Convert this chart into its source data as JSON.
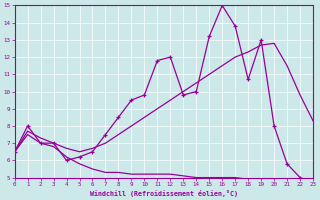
{
  "xlabel": "Windchill (Refroidissement éolien,°C)",
  "ylabel": "",
  "background_color": "#cce8e8",
  "line_color": "#990099",
  "grid_color": "#ffffff",
  "xmin": 0,
  "xmax": 23,
  "ymin": 5,
  "ymax": 15,
  "line1_x": [
    0,
    1,
    2,
    3,
    4,
    5,
    6,
    7,
    8,
    9,
    10,
    11,
    12,
    13,
    14,
    15,
    16,
    17,
    18,
    19,
    20,
    21,
    22,
    23
  ],
  "line1_y": [
    6.5,
    8.0,
    7.0,
    7.0,
    6.0,
    6.2,
    6.5,
    7.5,
    8.5,
    9.5,
    9.8,
    11.8,
    12.0,
    9.8,
    10.0,
    13.2,
    15.0,
    13.8,
    10.7,
    13.0,
    8.0,
    5.8,
    5.0,
    4.7
  ],
  "line2_x": [
    0,
    1,
    2,
    3,
    4,
    5,
    6,
    7,
    8,
    9,
    10,
    11,
    12,
    13,
    14,
    15,
    16,
    17,
    18,
    19,
    20,
    21,
    22,
    23
  ],
  "line2_y": [
    6.5,
    7.5,
    7.0,
    6.8,
    6.2,
    5.8,
    5.5,
    5.3,
    5.3,
    5.2,
    5.2,
    5.2,
    5.2,
    5.1,
    5.0,
    5.0,
    5.0,
    5.0,
    4.9,
    4.9,
    4.8,
    4.8,
    4.7,
    4.7
  ],
  "line3_x": [
    0,
    1,
    2,
    3,
    4,
    5,
    6,
    7,
    8,
    9,
    10,
    11,
    12,
    13,
    14,
    15,
    16,
    17,
    18,
    19,
    20,
    21,
    22,
    23
  ],
  "line3_y": [
    6.5,
    7.7,
    7.3,
    7.0,
    6.7,
    6.5,
    6.7,
    7.0,
    7.5,
    8.0,
    8.5,
    9.0,
    9.5,
    10.0,
    10.5,
    11.0,
    11.5,
    12.0,
    12.3,
    12.7,
    12.8,
    11.5,
    9.8,
    8.3
  ]
}
